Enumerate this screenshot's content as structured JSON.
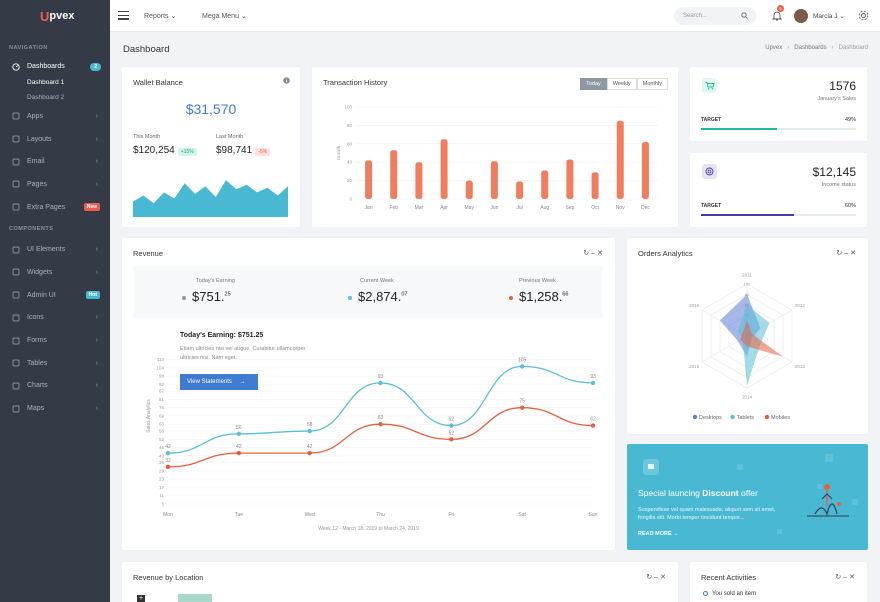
{
  "brand": {
    "logo_first": "U",
    "logo_rest": "pvex"
  },
  "sidebar": {
    "section_navigation": "NAVIGATION",
    "section_components": "COMPONENTS",
    "dashboards": {
      "label": "Dashboards",
      "badge": "2",
      "badge_color": "#49b9d3"
    },
    "sub_items": [
      "Dashboard 1",
      "Dashboard 2"
    ],
    "items": [
      {
        "label": "Apps",
        "icon": "grid-icon"
      },
      {
        "label": "Layouts",
        "icon": "layers-icon"
      },
      {
        "label": "Email",
        "icon": "mail-icon"
      },
      {
        "label": "Pages",
        "icon": "file-icon"
      },
      {
        "label": "Extra Pages",
        "icon": "wifi-icon",
        "badge": "New",
        "badge_color": "#f05b4f"
      }
    ],
    "components": [
      {
        "label": "UI Elements",
        "icon": "box-icon"
      },
      {
        "label": "Widgets",
        "icon": "widget-icon"
      },
      {
        "label": "Admin UI",
        "icon": "megaphone-icon",
        "badge": "Hot",
        "badge_color": "#49b9d3"
      },
      {
        "label": "Icons",
        "icon": "globe-icon"
      },
      {
        "label": "Forms",
        "icon": "pencil-icon"
      },
      {
        "label": "Tables",
        "icon": "table-icon"
      },
      {
        "label": "Charts",
        "icon": "bar-chart-icon"
      },
      {
        "label": "Maps",
        "icon": "map-icon"
      }
    ]
  },
  "topbar": {
    "reports": "Reports",
    "mega_menu": "Mega Menu",
    "search_placeholder": "Search...",
    "notifications": "5",
    "user": "Marcia J"
  },
  "page": {
    "title": "Dashboard",
    "breadcrumb": [
      "Upvex",
      "Dashboards",
      "Dashboard"
    ]
  },
  "wallet": {
    "title": "Wallet Balance",
    "balance": "$31,570",
    "this_month_label": "This Month",
    "this_month_value": "$120,254",
    "this_month_change": "+15%",
    "last_month_label": "Last Month",
    "last_month_value": "$98,741",
    "last_month_change": "-5%",
    "sparkline": [
      10,
      14,
      9,
      16,
      12,
      22,
      15,
      20,
      13,
      24,
      18,
      21,
      16,
      19,
      14,
      20
    ]
  },
  "transactions": {
    "title": "Transaction History",
    "tabs": [
      "Today",
      "Weekly",
      "Monthly"
    ],
    "chart_data": {
      "type": "bar",
      "ylabel": "Growth",
      "categories": [
        "Jan",
        "Feb",
        "Mar",
        "Apr",
        "May",
        "Jun",
        "Jul",
        "Aug",
        "Sep",
        "Oct",
        "Nov",
        "Dec"
      ],
      "values": [
        42,
        53,
        40,
        65,
        20,
        41,
        19,
        31,
        43,
        29,
        85,
        62
      ],
      "ylim": [
        0,
        100
      ],
      "ticks": [
        0,
        20,
        40,
        60,
        80,
        100
      ],
      "color": "#f07d5d"
    }
  },
  "sales": {
    "value": "1576",
    "label": "January's Sales",
    "target_label": "TARGET",
    "target_pct": "49%",
    "fill": 0.49,
    "color": "#1abc9c"
  },
  "income": {
    "value": "$12,145",
    "label": "Income status",
    "target_label": "TARGET",
    "target_pct": "60%",
    "fill": 0.6,
    "color": "#4a3aa6"
  },
  "revenue": {
    "title": "Revenue",
    "today_label": "Today's Earning",
    "today_value": "$751.",
    "today_cents": "25",
    "week_label": "Current Week",
    "week_value": "$2,874.",
    "week_cents": "07",
    "prev_label": "Previous Week",
    "prev_value": "$1,258.",
    "prev_cents": "66",
    "tooltip_title": "Today's Earning: $751.25",
    "tooltip_text": "Etiam ultricies nisi vel augue. Curabitur ullamcorper ultricies nisi. Nam eget.",
    "tooltip_button": "View Statements",
    "footer": "Week 12 - March 18, 2019 to March 24, 2019",
    "chart_data": {
      "type": "line",
      "ylabel": "Sales Analytics",
      "categories": [
        "Mon",
        "Tue",
        "Wed",
        "Thu",
        "Fri",
        "Sat",
        "Sun"
      ],
      "ylim": [
        5,
        130
      ],
      "ticks": [
        5,
        11,
        17,
        23,
        29,
        35,
        40,
        46,
        52,
        58,
        63,
        69,
        75,
        81,
        87,
        92,
        98,
        104,
        110,
        115,
        120,
        130
      ],
      "series": [
        {
          "values": [
            42,
            56,
            58,
            93,
            62,
            105,
            93
          ],
          "color": "#5bbfd6"
        },
        {
          "values": [
            32,
            42,
            42,
            63,
            52,
            75,
            62
          ],
          "color": "#e5603f"
        }
      ]
    }
  },
  "orders": {
    "title": "Orders Analytics",
    "chart_data": {
      "type": "radar",
      "axes": [
        "2011",
        "2012",
        "2013",
        "2014",
        "2015",
        "2016"
      ],
      "rings": [
        "0",
        "20",
        "40",
        "60",
        "80",
        "100"
      ],
      "series": [
        {
          "name": "Desktops",
          "color": "#5b7fd6",
          "values": [
            80,
            30,
            10,
            40,
            20,
            60
          ]
        },
        {
          "name": "Tablets",
          "color": "#5bbfd6",
          "values": [
            60,
            50,
            30,
            95,
            10,
            20
          ]
        },
        {
          "name": "Mobiles",
          "color": "#e5603f",
          "values": [
            30,
            10,
            80,
            20,
            15,
            10
          ]
        }
      ]
    }
  },
  "promo": {
    "title_pre": "Special launcing ",
    "title_bold": "Discount",
    "title_post": " offer",
    "text": "Suspendisse vel quam malesuada, aliquet sem sit amet, fringilla elit. Morbi tempor tincidunt tempor...",
    "link": "READ MORE →"
  },
  "location": {
    "title": "Revenue by Location"
  },
  "activities": {
    "title": "Recent Activities",
    "first": "You sold an item"
  }
}
